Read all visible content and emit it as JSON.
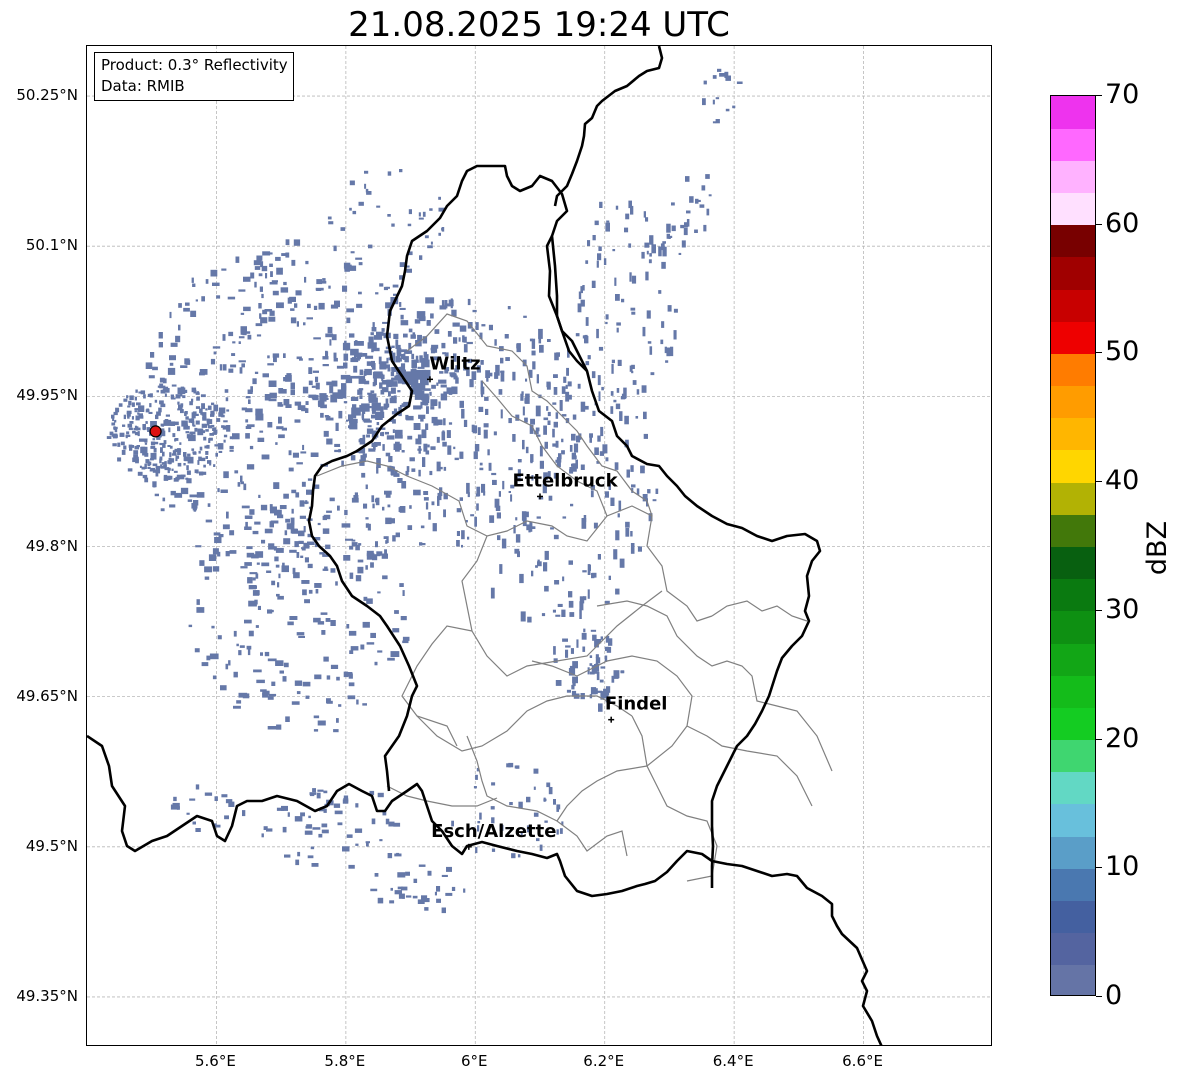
{
  "title": "21.08.2025 19:24 UTC",
  "info_box": {
    "product": "Product: 0.3° Reflectivity",
    "data": "Data: RMIB"
  },
  "axes": {
    "lat_labels": [
      "50.25°N",
      "50.1°N",
      "49.95°N",
      "49.8°N",
      "49.65°N",
      "49.5°N",
      "49.35°N"
    ],
    "lon_labels": [
      "5.6°E",
      "5.8°E",
      "6°E",
      "6.2°E",
      "6.4°E",
      "6.6°E"
    ],
    "lat_values": [
      50.25,
      50.1,
      49.95,
      49.8,
      49.65,
      49.5,
      49.35
    ],
    "lon_values": [
      5.6,
      5.8,
      6.0,
      6.2,
      6.4,
      6.6
    ],
    "lon_range": [
      5.4,
      6.8
    ],
    "lat_range": [
      49.3,
      50.3
    ],
    "grid": true
  },
  "cities": [
    {
      "name": "Wiltz",
      "lon": 5.93,
      "lat": 49.967
    },
    {
      "name": "Ettelbruck",
      "lon": 6.1,
      "lat": 49.85
    },
    {
      "name": "Findel",
      "lon": 6.21,
      "lat": 49.627
    },
    {
      "name": "Esch/Alzette",
      "lon": 5.99,
      "lat": 49.5
    }
  ],
  "radar_site": {
    "lon": 5.506,
    "lat": 49.915,
    "color": "#dd1111"
  },
  "colorbar": {
    "label": "dBZ",
    "min": 0,
    "max": 70,
    "ticks": [
      "0",
      "10",
      "20",
      "30",
      "40",
      "50",
      "60",
      "70"
    ],
    "step": 2.5,
    "colors": [
      "#6574a6",
      "#5464a0",
      "#4460a0",
      "#4a78b0",
      "#5a9ec8",
      "#68c0dc",
      "#62d8c4",
      "#3fd670",
      "#14cc22",
      "#14bc1a",
      "#12a616",
      "#0e9012",
      "#0a7a10",
      "#086010",
      "#42780a",
      "#b2b204",
      "#ffd600",
      "#ffb600",
      "#ff9c00",
      "#ff7c00",
      "#ee0000",
      "#c80000",
      "#a00000",
      "#780000",
      "#ffe0ff",
      "#ffb2ff",
      "#ff68ff",
      "#ee33ee"
    ]
  },
  "colors": {
    "echo": "#6578a8",
    "border": "#000000",
    "canton": "#808080",
    "grid": "#b8b8b8"
  }
}
